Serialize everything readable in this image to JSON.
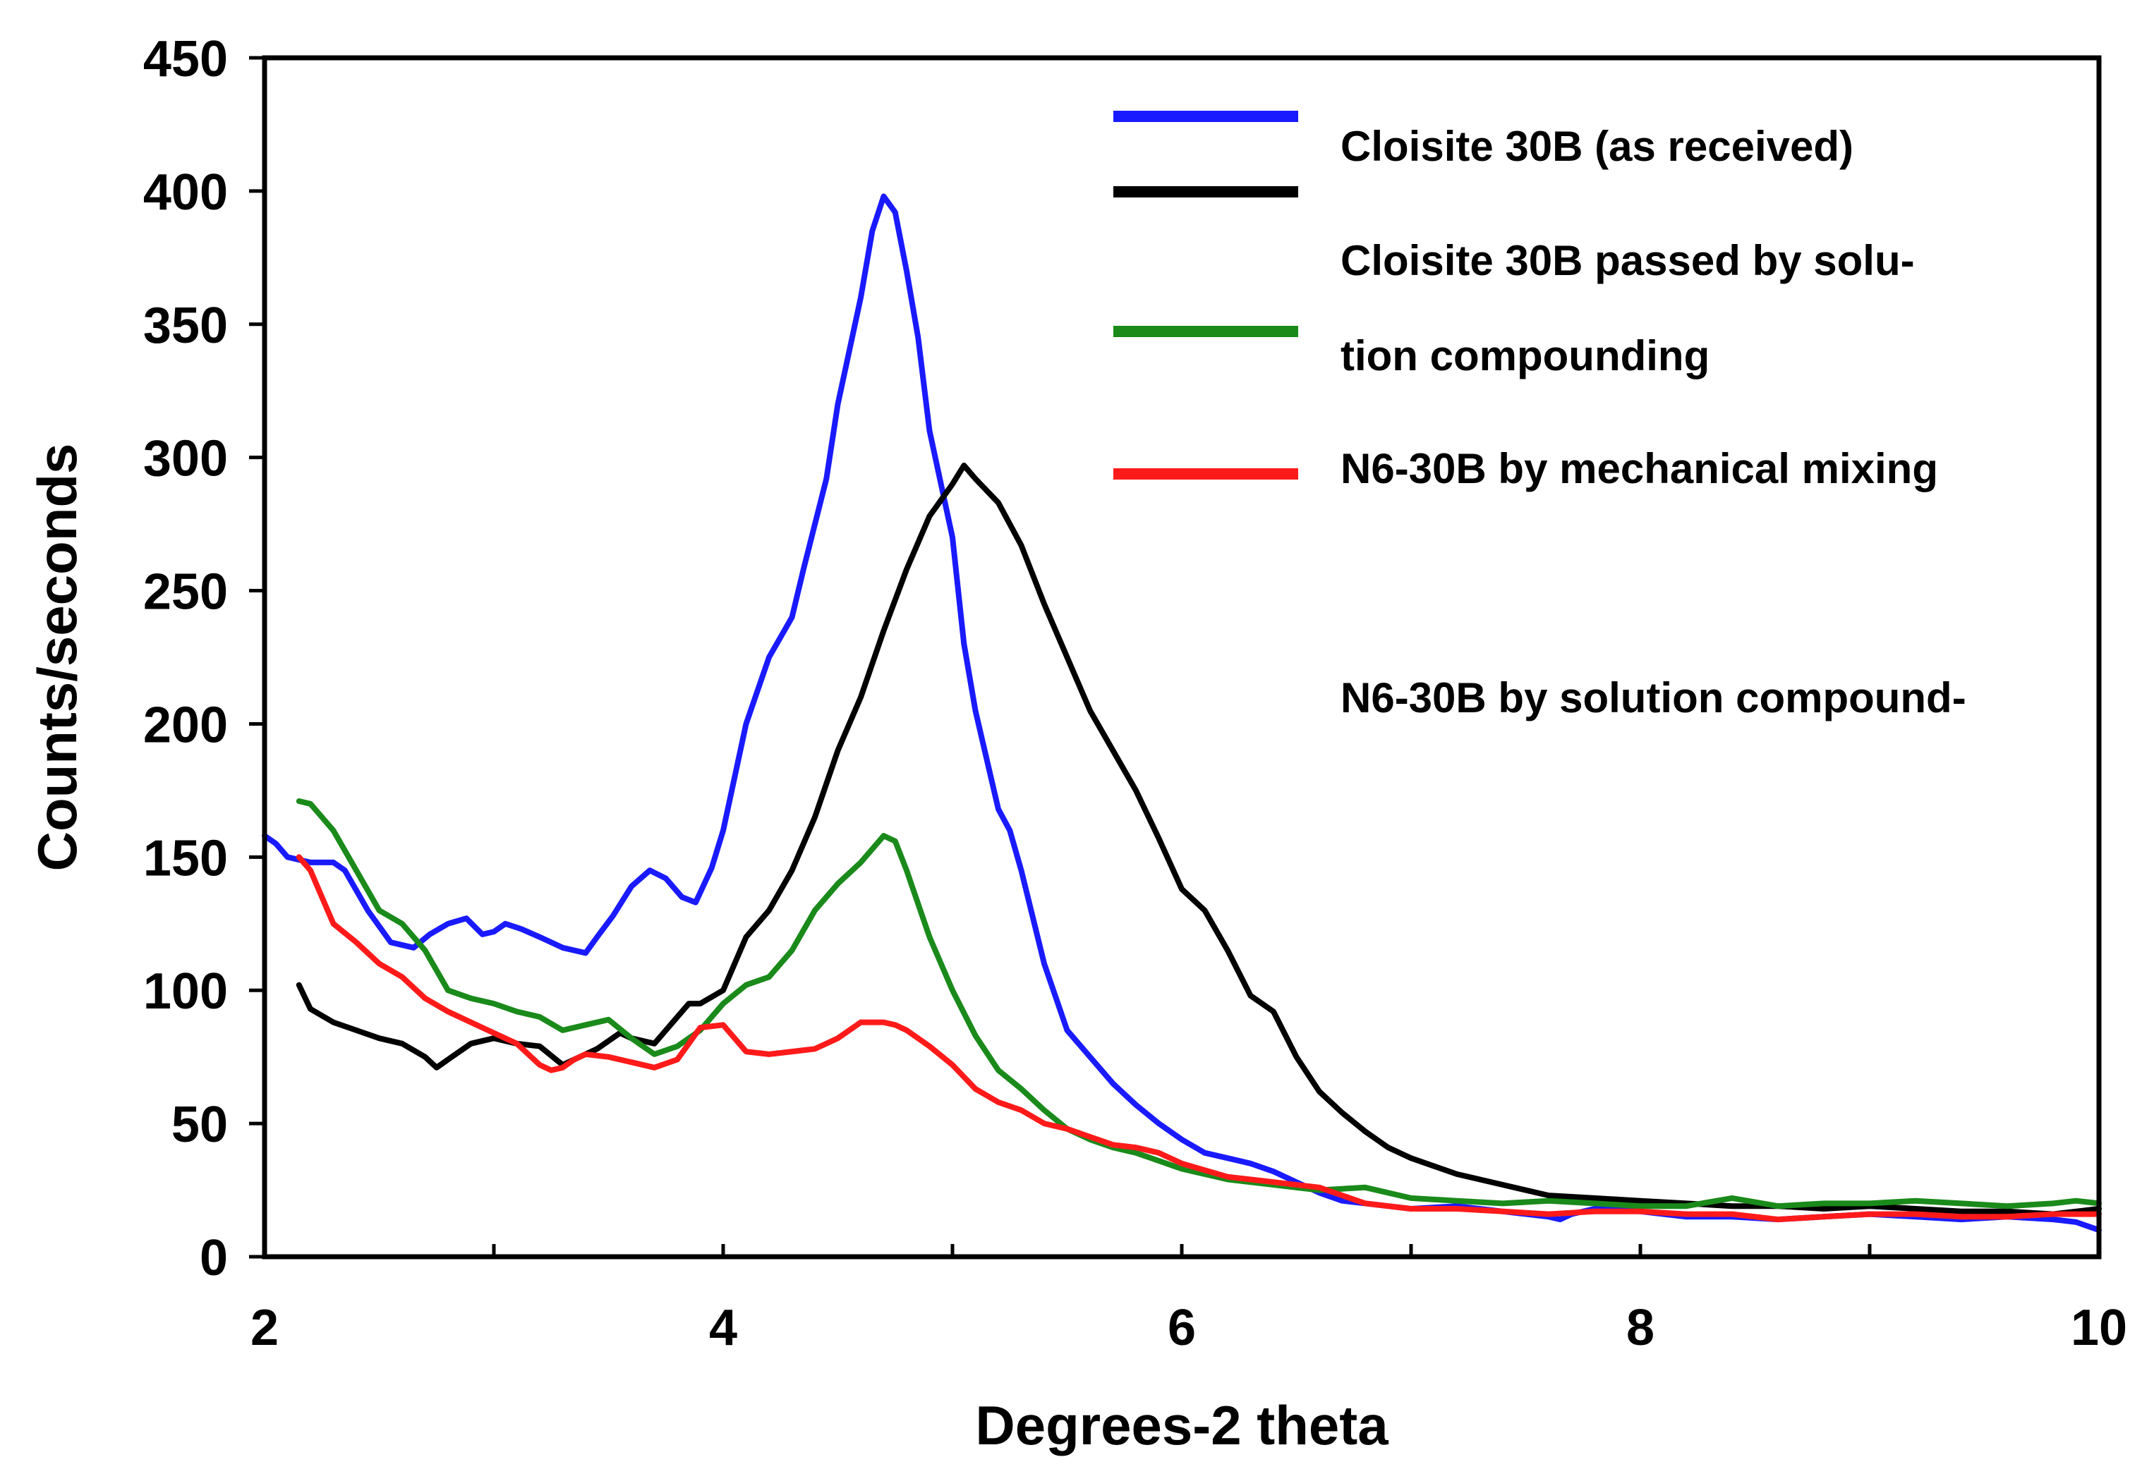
{
  "chart_data": {
    "type": "line",
    "title": "",
    "xlabel": "Degrees-2 theta",
    "ylabel": "Counts/seconds",
    "xlim": [
      2,
      10
    ],
    "ylim": [
      0,
      450
    ],
    "xticks": [
      2,
      4,
      6,
      8,
      10
    ],
    "yticks": [
      0,
      50,
      100,
      150,
      200,
      250,
      300,
      350,
      400,
      450
    ],
    "grid": false,
    "legend_position": "top-right",
    "legend_swatch_colors": [
      "#1a1aff",
      "#000000",
      "#1a8a1a",
      "#ff1a1a"
    ],
    "legend_labels": [
      "Cloisite 30B (as received)",
      "Cloisite 30B passed by solu-",
      "tion compounding",
      "N6-30B by mechanical mixing",
      "N6-30B by solution compound-"
    ],
    "series": [
      {
        "name": "Cloisite 30B (as received)",
        "color": "#1a1aff",
        "x": [
          2.0,
          2.05,
          2.1,
          2.2,
          2.3,
          2.35,
          2.45,
          2.55,
          2.65,
          2.72,
          2.8,
          2.88,
          2.95,
          3.0,
          3.05,
          3.12,
          3.2,
          3.3,
          3.4,
          3.45,
          3.52,
          3.6,
          3.68,
          3.75,
          3.82,
          3.88,
          3.95,
          4.0,
          4.1,
          4.2,
          4.3,
          4.35,
          4.45,
          4.5,
          4.6,
          4.65,
          4.7,
          4.75,
          4.8,
          4.85,
          4.9,
          5.0,
          5.05,
          5.1,
          5.2,
          5.25,
          5.3,
          5.4,
          5.5,
          5.6,
          5.7,
          5.8,
          5.9,
          6.0,
          6.1,
          6.2,
          6.3,
          6.4,
          6.5,
          6.6,
          6.7,
          6.8,
          6.9,
          7.0,
          7.2,
          7.4,
          7.6,
          7.65,
          7.7,
          7.8,
          8.0,
          8.2,
          8.4,
          8.6,
          8.8,
          9.0,
          9.2,
          9.4,
          9.6,
          9.8,
          9.9,
          10.0
        ],
        "y": [
          158,
          155,
          150,
          148,
          148,
          145,
          130,
          118,
          116,
          121,
          125,
          127,
          121,
          122,
          125,
          123,
          120,
          116,
          114,
          120,
          128,
          139,
          145,
          142,
          135,
          133,
          146,
          160,
          200,
          225,
          240,
          258,
          292,
          320,
          360,
          385,
          398,
          392,
          370,
          345,
          310,
          270,
          230,
          205,
          168,
          160,
          145,
          110,
          85,
          75,
          65,
          57,
          50,
          44,
          39,
          37,
          35,
          32,
          28,
          24,
          21,
          20,
          19,
          18,
          19,
          17,
          15,
          14,
          16,
          18,
          17,
          15,
          15,
          14,
          15,
          16,
          15,
          14,
          15,
          14,
          13,
          10
        ]
      },
      {
        "name": "Cloisite 30B passed by solution compounding",
        "color": "#000000",
        "x": [
          2.15,
          2.2,
          2.3,
          2.4,
          2.5,
          2.6,
          2.7,
          2.75,
          2.8,
          2.9,
          3.0,
          3.1,
          3.2,
          3.3,
          3.35,
          3.45,
          3.55,
          3.6,
          3.7,
          3.8,
          3.85,
          3.9,
          4.0,
          4.1,
          4.2,
          4.3,
          4.4,
          4.5,
          4.6,
          4.7,
          4.8,
          4.9,
          5.0,
          5.05,
          5.1,
          5.2,
          5.3,
          5.4,
          5.5,
          5.6,
          5.7,
          5.8,
          5.9,
          6.0,
          6.1,
          6.2,
          6.3,
          6.4,
          6.5,
          6.6,
          6.7,
          6.8,
          6.9,
          7.0,
          7.2,
          7.4,
          7.6,
          7.8,
          8.0,
          8.2,
          8.4,
          8.6,
          8.8,
          9.0,
          9.2,
          9.4,
          9.6,
          9.8,
          9.9,
          10.0
        ],
        "y": [
          102,
          93,
          88,
          85,
          82,
          80,
          75,
          71,
          74,
          80,
          82,
          80,
          79,
          72,
          74,
          78,
          84,
          82,
          80,
          90,
          95,
          95,
          100,
          120,
          130,
          145,
          165,
          190,
          210,
          235,
          258,
          278,
          290,
          297,
          292,
          283,
          267,
          245,
          225,
          205,
          190,
          175,
          157,
          138,
          130,
          115,
          98,
          92,
          75,
          62,
          54,
          47,
          41,
          37,
          31,
          27,
          23,
          22,
          21,
          20,
          19,
          19,
          18,
          19,
          18,
          17,
          17,
          16,
          17,
          18
        ]
      },
      {
        "name": "N6-30B by mechanical mixing",
        "color": "#1a8a1a",
        "x": [
          2.15,
          2.2,
          2.25,
          2.3,
          2.4,
          2.5,
          2.6,
          2.7,
          2.8,
          2.9,
          3.0,
          3.1,
          3.2,
          3.3,
          3.4,
          3.5,
          3.6,
          3.7,
          3.8,
          3.9,
          4.0,
          4.1,
          4.2,
          4.3,
          4.4,
          4.5,
          4.6,
          4.7,
          4.75,
          4.8,
          4.9,
          5.0,
          5.1,
          5.2,
          5.3,
          5.4,
          5.5,
          5.6,
          5.7,
          5.8,
          5.9,
          6.0,
          6.2,
          6.4,
          6.6,
          6.8,
          7.0,
          7.2,
          7.4,
          7.6,
          7.8,
          8.0,
          8.2,
          8.4,
          8.6,
          8.8,
          9.0,
          9.2,
          9.4,
          9.6,
          9.8,
          9.9,
          10.0
        ],
        "y": [
          171,
          170,
          165,
          160,
          145,
          130,
          125,
          115,
          100,
          97,
          95,
          92,
          90,
          85,
          87,
          89,
          82,
          76,
          79,
          85,
          95,
          102,
          105,
          115,
          130,
          140,
          148,
          158,
          156,
          145,
          120,
          100,
          83,
          70,
          63,
          55,
          48,
          44,
          41,
          39,
          36,
          33,
          29,
          27,
          25,
          26,
          22,
          21,
          20,
          21,
          20,
          19,
          19,
          22,
          19,
          20,
          20,
          21,
          20,
          19,
          20,
          21,
          20
        ]
      },
      {
        "name": "N6-30B by solution compounding",
        "color": "#ff1a1a",
        "x": [
          2.15,
          2.2,
          2.3,
          2.4,
          2.5,
          2.6,
          2.7,
          2.8,
          2.9,
          3.0,
          3.1,
          3.2,
          3.25,
          3.3,
          3.35,
          3.4,
          3.5,
          3.6,
          3.7,
          3.8,
          3.85,
          3.9,
          4.0,
          4.1,
          4.2,
          4.3,
          4.4,
          4.5,
          4.6,
          4.7,
          4.75,
          4.8,
          4.9,
          5.0,
          5.1,
          5.2,
          5.3,
          5.4,
          5.5,
          5.6,
          5.7,
          5.8,
          5.9,
          6.0,
          6.2,
          6.4,
          6.6,
          6.8,
          7.0,
          7.2,
          7.4,
          7.6,
          7.8,
          8.0,
          8.2,
          8.4,
          8.6,
          8.8,
          9.0,
          9.2,
          9.4,
          9.6,
          9.8,
          10.0
        ],
        "y": [
          150,
          145,
          125,
          118,
          110,
          105,
          97,
          92,
          88,
          84,
          80,
          72,
          70,
          71,
          74,
          76,
          75,
          73,
          71,
          74,
          80,
          86,
          87,
          77,
          76,
          77,
          78,
          82,
          88,
          88,
          87,
          85,
          79,
          72,
          63,
          58,
          55,
          50,
          48,
          45,
          42,
          41,
          39,
          35,
          30,
          28,
          26,
          20,
          18,
          18,
          17,
          16,
          17,
          17,
          16,
          16,
          14,
          15,
          16,
          16,
          15,
          15,
          16,
          16
        ]
      }
    ]
  }
}
